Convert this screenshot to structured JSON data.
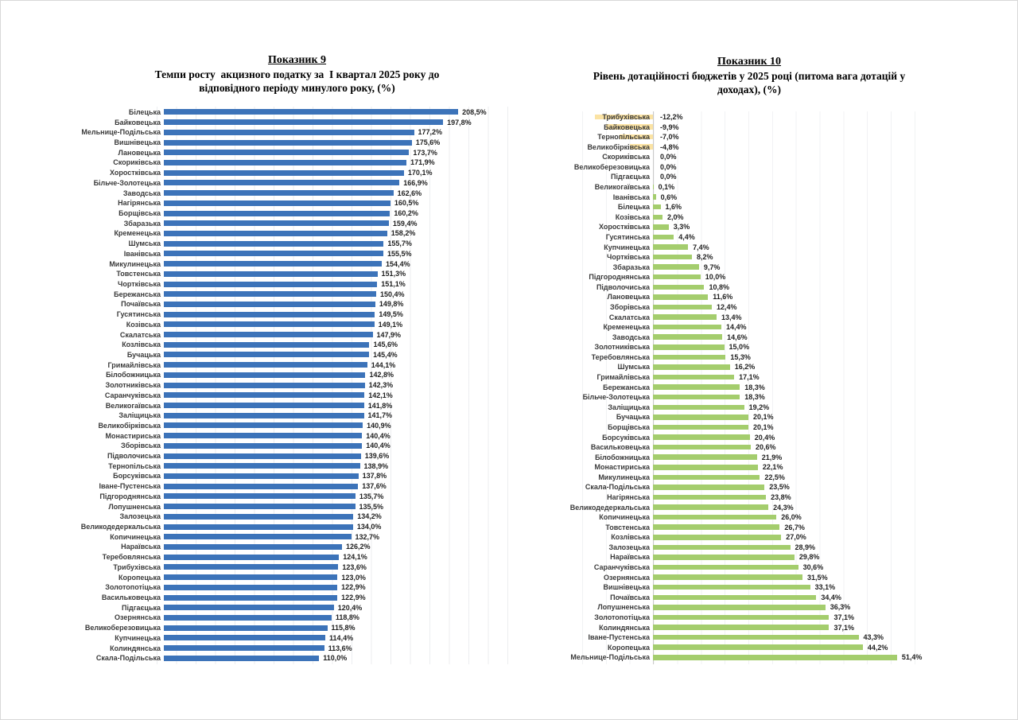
{
  "chart_data": [
    {
      "type": "bar",
      "orientation": "horizontal",
      "heading": "Показник 9",
      "title_lines": [
        "Темпи росту  акцизного податку за  І квартал 2025 року до",
        "відповідного періоду минулого року, (%)"
      ],
      "value_suffix": "%",
      "decimal_separator": ",",
      "bar_color": "#3c73b9",
      "negative_bar_color": "#fbe3a4",
      "xlim": [
        0,
        250
      ],
      "grid": true,
      "legend": "none",
      "categories": [
        "Білецька",
        "Байковецька",
        "Мельнице-Подільська",
        "Вишнівецька",
        "Лановецька",
        "Скориківська",
        "Хоростківська",
        "Більче-Золотецька",
        "Заводська",
        "Нагірянська",
        "Борщівська",
        "Збаразька",
        "Кременецька",
        "Шумська",
        "Іванівська",
        "Микулинецька",
        "Товстенська",
        "Чортківська",
        "Бережанська",
        "Почаївська",
        "Гусятинська",
        "Козівська",
        "Скалатська",
        "Козлівська",
        "Бучацька",
        "Гримайлівська",
        "Білобожницька",
        "Золотниківська",
        "Саранчуківська",
        "Великогаївська",
        "Заліщицька",
        "Великобірківська",
        "Монастириська",
        "Зборівська",
        "Підволочиська",
        "Тернопільська",
        "Борсуківська",
        "Іване-Пустенська",
        "Підгороднянська",
        "Лопушненська",
        "Залозецька",
        "Великодедеркальська",
        "Копичинецька",
        "Нараївська",
        "Теребовлянська",
        "Трибухівська",
        "Коропецька",
        "Золотопотіцька",
        "Васильковецька",
        "Підгаєцька",
        "Озернянська",
        "Великоберезовицька",
        "Купчинецька",
        "Колиндянська",
        "Скала-Подільська"
      ],
      "values": [
        208.5,
        197.8,
        177.2,
        175.6,
        173.7,
        171.9,
        170.1,
        166.9,
        162.6,
        160.5,
        160.2,
        159.4,
        158.2,
        155.7,
        155.5,
        154.4,
        151.3,
        151.1,
        150.4,
        149.8,
        149.5,
        149.1,
        147.9,
        145.6,
        145.4,
        144.1,
        142.8,
        142.3,
        142.1,
        141.8,
        141.7,
        140.9,
        140.4,
        140.4,
        139.6,
        138.9,
        137.8,
        137.6,
        135.7,
        135.5,
        134.2,
        134.0,
        132.7,
        126.2,
        124.1,
        123.6,
        123.0,
        122.9,
        122.9,
        120.4,
        118.8,
        115.8,
        114.4,
        113.6,
        110.0
      ]
    },
    {
      "type": "bar",
      "orientation": "horizontal",
      "heading": "Показник 10",
      "title_lines": [
        "Рівень дотаційності бюджетів у 2025 році (питома вага дотацій у",
        "доходах), (%)"
      ],
      "value_suffix": "%",
      "decimal_separator": ",",
      "bar_color": "#a4cd6d",
      "negative_bar_color": "#fbe3a4",
      "xlim": [
        -15,
        55
      ],
      "grid": true,
      "legend": "none",
      "categories": [
        "Трибухівська",
        "Байковецька",
        "Тернопільська",
        "Великобірківська",
        "Скориківська",
        "Великоберезовицька",
        "Підгаєцька",
        "Великогаївська",
        "Іванівська",
        "Білецька",
        "Козівська",
        "Хоростківська",
        "Гусятинська",
        "Купчинецька",
        "Чортківська",
        "Збаразька",
        "Підгороднянська",
        "Підволочиська",
        "Лановецька",
        "Зборівська",
        "Скалатська",
        "Кременецька",
        "Заводська",
        "Золотниківська",
        "Теребовлянська",
        "Шумська",
        "Гримайлівська",
        "Бережанська",
        "Більче-Золотецька",
        "Заліщицька",
        "Бучацька",
        "Борщівська",
        "Борсуківська",
        "Васильковецька",
        "Білобожницька",
        "Монастириська",
        "Микулинецька",
        "Скала-Подільська",
        "Нагірянська",
        "Великодедеркальська",
        "Копичинецька",
        "Товстенська",
        "Козлівська",
        "Залозецька",
        "Нараївська",
        "Саранчуківська",
        "Озернянська",
        "Вишнівецька",
        "Почаївська",
        "Лопушненська",
        "Золотопотіцька",
        "Колиндянська",
        "Іване-Пустенська",
        "Коропецька",
        "Мельнице-Подільська"
      ],
      "values": [
        -12.2,
        -9.9,
        -7.0,
        -4.8,
        0.0,
        0.0,
        0.0,
        0.1,
        0.6,
        1.6,
        2.0,
        3.3,
        4.4,
        7.4,
        8.2,
        9.7,
        10.0,
        10.8,
        11.6,
        12.4,
        13.4,
        14.4,
        14.6,
        15.0,
        15.3,
        16.2,
        17.1,
        18.3,
        18.3,
        19.2,
        20.1,
        20.1,
        20.4,
        20.6,
        21.9,
        22.1,
        22.5,
        23.5,
        23.8,
        24.3,
        26.0,
        26.7,
        27.0,
        28.9,
        29.8,
        30.6,
        31.5,
        33.1,
        34.4,
        36.3,
        37.1,
        37.1,
        43.3,
        44.2,
        51.4
      ]
    }
  ]
}
